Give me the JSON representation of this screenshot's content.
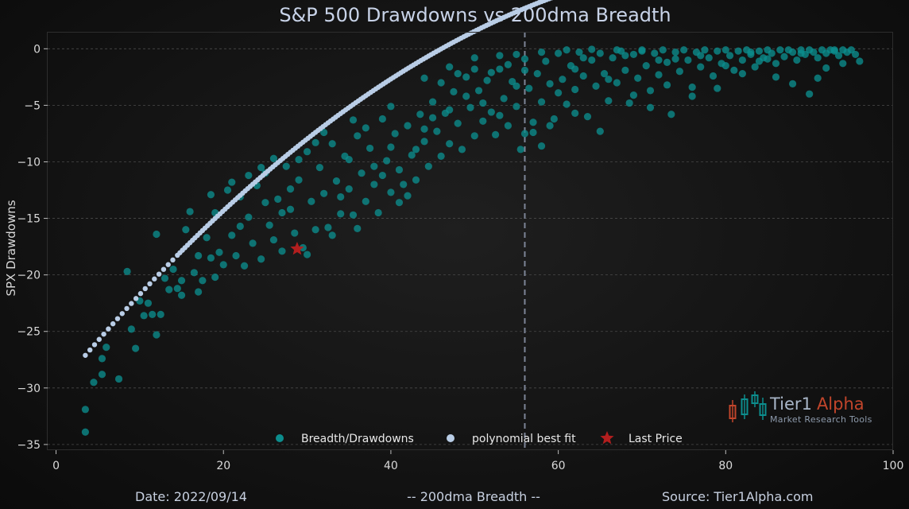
{
  "chart_data": {
    "type": "scatter",
    "title": "S&P 500 Drawdowns vs 200dma Breadth",
    "xlabel": "-- 200dma Breadth --",
    "ylabel": "SPX Drawdowns",
    "xlim": [
      -1,
      100
    ],
    "ylim": [
      -35.5,
      1.5
    ],
    "x_ticks": [
      0,
      20,
      40,
      60,
      80,
      100
    ],
    "y_ticks": [
      0,
      -5,
      -10,
      -15,
      -20,
      -25,
      -30,
      -35
    ],
    "x_tick_labels": [
      "0",
      "20",
      "40",
      "60",
      "80",
      "100"
    ],
    "y_tick_labels": [
      "0",
      "−5",
      "−10",
      "−15",
      "−20",
      "−25",
      "−30",
      "−35"
    ],
    "grid": "horizontal dashed",
    "reference_line": {
      "x": 56,
      "style": "dashed"
    },
    "legend": {
      "placement": "bottom-center",
      "items": [
        {
          "label": "Breadth/Drawdowns",
          "marker": "circle",
          "color": "#0c8d8d"
        },
        {
          "label": "polynomial best fit",
          "marker": "circle",
          "color": "#b9cde6"
        },
        {
          "label": "Last Price",
          "marker": "star",
          "color": "#b21e1e"
        }
      ]
    },
    "series": [
      {
        "name": "Breadth/Drawdowns",
        "color": "#0c8d8d",
        "points": [
          [
            3.5,
            -33.9
          ],
          [
            3.5,
            -31.9
          ],
          [
            4.5,
            -29.5
          ],
          [
            5.5,
            -27.4
          ],
          [
            5.5,
            -28.8
          ],
          [
            6,
            -26.4
          ],
          [
            7.5,
            -29.2
          ],
          [
            8.5,
            -19.7
          ],
          [
            9,
            -24.8
          ],
          [
            9.5,
            -26.5
          ],
          [
            10,
            -22.3
          ],
          [
            10.5,
            -23.6
          ],
          [
            11,
            -22.5
          ],
          [
            11.5,
            -23.5
          ],
          [
            12,
            -25.3
          ],
          [
            12,
            -16.4
          ],
          [
            12.5,
            -23.5
          ],
          [
            13.5,
            -21.3
          ],
          [
            14,
            -19.5
          ],
          [
            14.5,
            -21.2
          ],
          [
            15,
            -20.5
          ],
          [
            15.5,
            -16
          ],
          [
            16,
            -14.4
          ],
          [
            16.5,
            -19.8
          ],
          [
            17,
            -18.3
          ],
          [
            17.5,
            -20.5
          ],
          [
            18,
            -16.7
          ],
          [
            18.5,
            -18.5
          ],
          [
            19,
            -14.5
          ],
          [
            19.5,
            -18
          ],
          [
            20,
            -19.1
          ],
          [
            20.5,
            -12.5
          ],
          [
            21,
            -16.5
          ],
          [
            21.5,
            -18.3
          ],
          [
            22,
            -13.1
          ],
          [
            22.5,
            -19.2
          ],
          [
            23,
            -14.9
          ],
          [
            23.5,
            -17.2
          ],
          [
            24,
            -12.1
          ],
          [
            24.5,
            -18.6
          ],
          [
            25,
            -11
          ],
          [
            25.5,
            -15.6
          ],
          [
            26,
            -16.9
          ],
          [
            26.5,
            -13.3
          ],
          [
            27,
            -17.9
          ],
          [
            27.5,
            -10.4
          ],
          [
            28,
            -14.2
          ],
          [
            28.5,
            -16.3
          ],
          [
            29,
            -11.6
          ],
          [
            29.5,
            -17.6
          ],
          [
            30,
            -9.1
          ],
          [
            30.5,
            -13.5
          ],
          [
            31,
            -16
          ],
          [
            31.5,
            -10.5
          ],
          [
            32,
            -12.8
          ],
          [
            32.5,
            -15.8
          ],
          [
            33,
            -8.4
          ],
          [
            33.5,
            -11.7
          ],
          [
            34,
            -14.6
          ],
          [
            34.5,
            -9.5
          ],
          [
            35,
            -12.4
          ],
          [
            35.5,
            -14.7
          ],
          [
            36,
            -7.7
          ],
          [
            36.5,
            -11
          ],
          [
            37,
            -13.5
          ],
          [
            37.5,
            -8.8
          ],
          [
            38,
            -12
          ],
          [
            38.5,
            -14.5
          ],
          [
            39,
            -6.2
          ],
          [
            39.5,
            -9.9
          ],
          [
            40,
            -12.7
          ],
          [
            40.5,
            -7.5
          ],
          [
            41,
            -10.7
          ],
          [
            41.5,
            -12
          ],
          [
            42,
            -6.8
          ],
          [
            42.5,
            -9.4
          ],
          [
            43,
            -11.6
          ],
          [
            43.5,
            -5.8
          ],
          [
            44,
            -8.2
          ],
          [
            44.5,
            -10.4
          ],
          [
            45,
            -4.7
          ],
          [
            45.5,
            -7.3
          ],
          [
            46,
            -9.5
          ],
          [
            46.5,
            -5.7
          ],
          [
            47,
            -8.4
          ],
          [
            47.5,
            -3.8
          ],
          [
            48,
            -6.6
          ],
          [
            48.5,
            -8.9
          ],
          [
            49,
            -2.5
          ],
          [
            49.5,
            -5.2
          ],
          [
            50,
            -7.7
          ],
          [
            50.5,
            -3.7
          ],
          [
            51,
            -6.4
          ],
          [
            51.5,
            -2.8
          ],
          [
            52,
            -5.6
          ],
          [
            52.5,
            -7.6
          ],
          [
            53,
            -1.8
          ],
          [
            53.5,
            -4.4
          ],
          [
            54,
            -6.8
          ],
          [
            54.5,
            -2.9
          ],
          [
            55,
            -5.1
          ],
          [
            55.5,
            -8.9
          ],
          [
            56,
            -0.9
          ],
          [
            56.5,
            -3.5
          ],
          [
            57,
            -6.5
          ],
          [
            57.5,
            -2.2
          ],
          [
            58,
            -4.7
          ],
          [
            58.5,
            -1.1
          ],
          [
            59,
            -3.1
          ],
          [
            59.5,
            -6.2
          ],
          [
            60,
            -0.4
          ],
          [
            60.5,
            -2.7
          ],
          [
            61,
            -4.9
          ],
          [
            61.5,
            -1.5
          ],
          [
            62,
            -3.6
          ],
          [
            62.5,
            -0.3
          ],
          [
            63,
            -2.4
          ],
          [
            63.5,
            -6
          ],
          [
            64,
            -1
          ],
          [
            64.5,
            -3.3
          ],
          [
            65,
            -0.4
          ],
          [
            65.5,
            -2.2
          ],
          [
            66,
            -4.6
          ],
          [
            66.5,
            -0.8
          ],
          [
            67,
            -3
          ],
          [
            67.5,
            -0.2
          ],
          [
            68,
            -1.9
          ],
          [
            68.5,
            -4.8
          ],
          [
            69,
            -0.5
          ],
          [
            69.5,
            -2.6
          ],
          [
            70,
            -0.1
          ],
          [
            70.5,
            -1.5
          ],
          [
            71,
            -3.7
          ],
          [
            71.5,
            -0.4
          ],
          [
            72,
            -2.3
          ],
          [
            72.5,
            -0.1
          ],
          [
            73,
            -1.2
          ],
          [
            73.5,
            -5.8
          ],
          [
            74,
            -0.3
          ],
          [
            74.5,
            -2
          ],
          [
            75,
            -0.1
          ],
          [
            75.5,
            -1
          ],
          [
            76,
            -3.4
          ],
          [
            76.5,
            -0.3
          ],
          [
            77,
            -1.6
          ],
          [
            77.5,
            -0.1
          ],
          [
            78,
            -0.8
          ],
          [
            78.5,
            -2.4
          ],
          [
            79,
            -0.2
          ],
          [
            79.5,
            -1.3
          ],
          [
            80,
            -0.1
          ],
          [
            80.5,
            -0.6
          ],
          [
            81,
            -1.9
          ],
          [
            81.5,
            -0.2
          ],
          [
            82,
            -1
          ],
          [
            82.5,
            -0.1
          ],
          [
            83,
            -0.5
          ],
          [
            83.5,
            -1.6
          ],
          [
            84,
            -0.2
          ],
          [
            84.5,
            -0.8
          ],
          [
            85,
            -0.1
          ],
          [
            85.5,
            -0.4
          ],
          [
            86,
            -1.3
          ],
          [
            86.5,
            -0.1
          ],
          [
            87,
            -0.7
          ],
          [
            87.5,
            -0.1
          ],
          [
            88,
            -0.3
          ],
          [
            88.5,
            -1
          ],
          [
            89,
            -0.1
          ],
          [
            89.5,
            -0.5
          ],
          [
            90,
            -0.1
          ],
          [
            90.5,
            -0.3
          ],
          [
            91,
            -0.8
          ],
          [
            91.5,
            -0.1
          ],
          [
            92,
            -0.4
          ],
          [
            92.5,
            -0.1
          ],
          [
            93,
            -0.2
          ],
          [
            93.5,
            -0.6
          ],
          [
            94,
            -0.1
          ],
          [
            94.5,
            -0.3
          ],
          [
            95,
            -0.1
          ],
          [
            95.5,
            -0.5
          ],
          [
            96,
            -1.1
          ],
          [
            61,
            -0.1
          ],
          [
            64,
            -0.05
          ],
          [
            67,
            -0.1
          ],
          [
            70,
            -0.2
          ],
          [
            58,
            -0.3
          ],
          [
            62,
            -1.8
          ],
          [
            66,
            -2.7
          ],
          [
            72,
            -1
          ],
          [
            77,
            -0.6
          ],
          [
            83,
            -0.3
          ],
          [
            89,
            -0.4
          ],
          [
            93,
            -0.1
          ],
          [
            57,
            -7.4
          ],
          [
            60,
            -3.9
          ],
          [
            63,
            -0.8
          ],
          [
            86,
            -2.5
          ],
          [
            91,
            -2.6
          ],
          [
            94,
            -1.3
          ],
          [
            68,
            -0.6
          ],
          [
            74,
            -0.9
          ],
          [
            80,
            -1.5
          ],
          [
            84,
            -1.1
          ],
          [
            35,
            -9.8
          ],
          [
            37,
            -7
          ],
          [
            39,
            -11.2
          ],
          [
            41,
            -13.6
          ],
          [
            43,
            -8.9
          ],
          [
            45,
            -6.1
          ],
          [
            47,
            -5.4
          ],
          [
            49,
            -4.2
          ],
          [
            51,
            -4.8
          ],
          [
            53,
            -5.9
          ],
          [
            55,
            -3.3
          ],
          [
            26,
            -9.7
          ],
          [
            28,
            -12.4
          ],
          [
            31,
            -8.3
          ],
          [
            34,
            -13.1
          ],
          [
            36,
            -15.9
          ],
          [
            38,
            -10.4
          ],
          [
            40,
            -8.7
          ],
          [
            42,
            -13
          ],
          [
            44,
            -7.1
          ],
          [
            46,
            -3
          ],
          [
            48,
            -2.2
          ],
          [
            50,
            -1.8
          ],
          [
            52,
            -2.1
          ],
          [
            54,
            -1.4
          ],
          [
            56,
            -1.9
          ],
          [
            33,
            -16.5
          ],
          [
            30,
            -18.2
          ],
          [
            27,
            -14.5
          ],
          [
            25,
            -13.6
          ],
          [
            23,
            -11.2
          ],
          [
            22,
            -15.7
          ],
          [
            19,
            -20.2
          ],
          [
            17,
            -21.5
          ],
          [
            15,
            -21.8
          ],
          [
            13,
            -20.3
          ],
          [
            18.5,
            -12.9
          ],
          [
            21,
            -11.8
          ],
          [
            24.5,
            -10.5
          ],
          [
            29,
            -9.8
          ],
          [
            32,
            -7.4
          ],
          [
            35.5,
            -6.3
          ],
          [
            40,
            -5.1
          ],
          [
            44,
            -2.6
          ],
          [
            47,
            -1.6
          ],
          [
            50,
            -0.8
          ],
          [
            53,
            -0.6
          ],
          [
            55,
            -0.5
          ],
          [
            90,
            -4
          ],
          [
            88,
            -3.1
          ],
          [
            92,
            -1.7
          ],
          [
            85,
            -0.9
          ],
          [
            82,
            -2.2
          ],
          [
            79,
            -3.5
          ],
          [
            76,
            -4.2
          ],
          [
            73,
            -3.2
          ],
          [
            71,
            -5.2
          ],
          [
            69,
            -4.1
          ],
          [
            65,
            -7.3
          ],
          [
            62,
            -5.7
          ],
          [
            59,
            -6.8
          ],
          [
            58,
            -8.6
          ],
          [
            56,
            -7.5
          ]
        ]
      },
      {
        "name": "polynomial best fit",
        "color": "#b9cde6",
        "coefficients": [
          -30.2,
          0.9,
          -0.0053
        ],
        "x_range": [
          3.5,
          96
        ]
      },
      {
        "name": "Last Price",
        "color": "#b21e1e",
        "points": [
          [
            28.8,
            -17.7
          ]
        ]
      }
    ]
  },
  "footer": {
    "date": "Date: 2022/09/14",
    "xlabel": "-- 200dma Breadth --",
    "source": "Source: Tier1Alpha.com"
  },
  "branding": {
    "name_main": "Tier1",
    "name_accent": "Alpha",
    "tagline": "Market  Research Tools",
    "icon": "candlestick-logo-icon"
  }
}
